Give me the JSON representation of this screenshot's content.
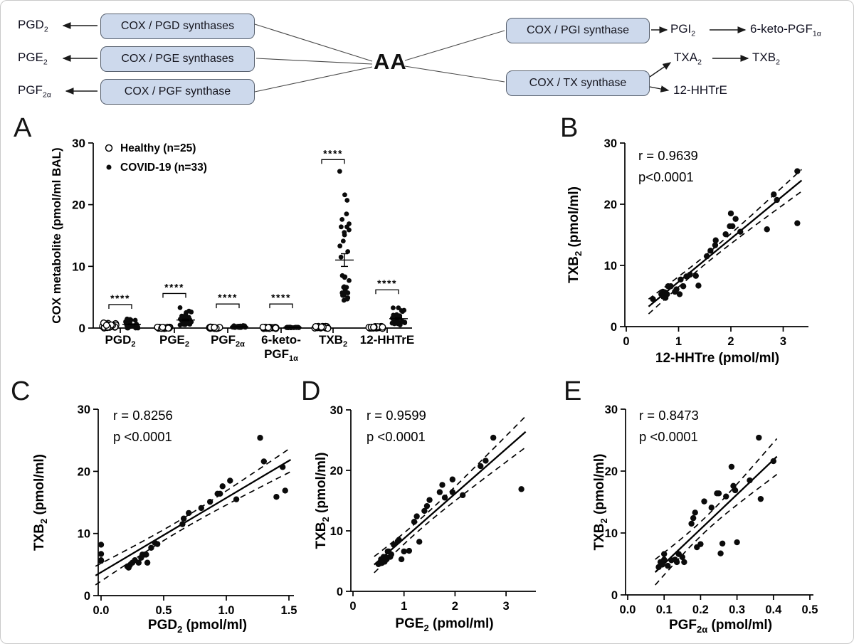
{
  "panel_letters": {
    "a": "A",
    "b": "B",
    "c": "C",
    "d": "D",
    "e": "E"
  },
  "colors": {
    "box_fill": "#cdd9ec",
    "box_border": "#57606e",
    "ink": "#000000"
  },
  "pathway": {
    "center_label": "AA",
    "left_boxes": [
      "COX / PGD synthases",
      "COX / PGE synthases",
      "COX / PGF synthase"
    ],
    "left_products": [
      {
        "base": "PGD",
        "sub": "2"
      },
      {
        "base": "PGE",
        "sub": "2"
      },
      {
        "base": "PGF",
        "sub": "2α"
      }
    ],
    "right_boxes": [
      "COX / PGI synthase",
      "COX / TX synthase"
    ],
    "right_products": [
      {
        "base": "PGI",
        "sub": "2"
      },
      {
        "base": "6-keto-PGF",
        "sub": "1α"
      },
      {
        "base": "TXA",
        "sub": "2"
      },
      {
        "base": "TXB",
        "sub": "2"
      },
      {
        "base": "12-HHTrE",
        "sub": ""
      }
    ]
  },
  "chart_data": [
    {
      "id": "A",
      "type": "scatter",
      "subtype": "grouped-dot-plot",
      "ylabel": "COX metabolite (pmol/ml BAL)",
      "ylim": [
        0,
        30
      ],
      "yticks": [
        0,
        10,
        20,
        30
      ],
      "ytick_labels": [
        "0",
        "10",
        "20",
        "30"
      ],
      "grid": false,
      "legend_position": "top-left-inside",
      "legend": [
        {
          "marker": "open-circle",
          "label": "Healthy (n=25)"
        },
        {
          "marker": "filled-circle",
          "label": "COVID-19 (n=33)"
        }
      ],
      "significance_label": "****",
      "categories": [
        {
          "label_lines": [
            {
              "base": "PGD",
              "sub": "2"
            }
          ],
          "bracket_y": 3.8,
          "healthy": [
            0.1,
            0.28,
            0.45,
            0.15,
            0.6,
            0.32,
            0.08,
            0.5,
            0.22,
            0.7,
            0.38,
            0.12,
            0.55,
            0.3,
            0.8,
            0.18,
            0.42,
            0.25,
            0.65,
            0.35,
            0.1,
            0.48,
            0.27,
            0.88,
            0.4
          ],
          "covid": [
            0.22,
            0.25,
            0.27,
            0.23,
            0.0,
            0.21,
            0.3,
            0.33,
            0.35,
            0.0,
            0.32,
            0.37,
            0.4,
            0.36,
            0.0,
            0.43,
            0.45,
            0.0,
            0.65,
            0.66,
            0.7,
            0.8,
            0.87,
            0.93,
            1.03,
            0.95,
            0.97,
            1.08,
            1.4,
            1.3,
            1.45,
            1.27,
            1.47
          ]
        },
        {
          "label_lines": [
            {
              "base": "PGE",
              "sub": "2"
            }
          ],
          "bracket_y": 5.6,
          "healthy": [
            0.02,
            0.05,
            0.08,
            0.03,
            0.07,
            0.1,
            0.04,
            0.06,
            0.02,
            0.09,
            0.05,
            0.07,
            0.03,
            0.08,
            0.04,
            0.1,
            0.05,
            0.06,
            0.09,
            0.03,
            0.07,
            0.02,
            0.06,
            0.04,
            0.08
          ],
          "covid": [
            0.5,
            0.55,
            0.6,
            0.62,
            0.65,
            0.57,
            0.66,
            0.68,
            0.7,
            0.73,
            0.75,
            0.95,
            0.8,
            1.0,
            1.3,
            0.9,
            0.88,
            1.1,
            1.2,
            1.25,
            1.4,
            1.45,
            1.5,
            1.95,
            1.95,
            1.7,
            1.75,
            1.8,
            2.15,
            2.6,
            2.5,
            2.75,
            3.3
          ]
        },
        {
          "label_lines": [
            {
              "base": "PGF",
              "sub": "2α"
            }
          ],
          "bracket_y": 3.9,
          "healthy": [
            0.02,
            0.04,
            0.06,
            0.03,
            0.05,
            0.08,
            0.04,
            0.06,
            0.02,
            0.07,
            0.05,
            0.03,
            0.06,
            0.04,
            0.08,
            0.03,
            0.05,
            0.07,
            0.02,
            0.06,
            0.04,
            0.08,
            0.05,
            0.03,
            0.07
          ],
          "covid": [
            0.085,
            0.09,
            0.1,
            0.095,
            0.12,
            0.11,
            0.135,
            0.1,
            0.14,
            0.13,
            0.15,
            0.155,
            0.19,
            0.14,
            0.2,
            0.3,
            0.26,
            0.255,
            0.175,
            0.18,
            0.185,
            0.23,
            0.21,
            0.245,
            0.335,
            0.25,
            0.29,
            0.365,
            0.27,
            0.4,
            0.285,
            0.36,
            0.295
          ]
        },
        {
          "label_lines": [
            {
              "base": "6-keto-",
              "sub": ""
            },
            {
              "base": "PGF",
              "sub": "1α"
            }
          ],
          "bracket_y": 3.9,
          "healthy": [
            0.02,
            0.05,
            0.03,
            0.06,
            0.04,
            0.07,
            0.03,
            0.05,
            0.02,
            0.06,
            0.04,
            0.08,
            0.03,
            0.05,
            0.07,
            0.02,
            0.06,
            0.04,
            0.07,
            0.03,
            0.05,
            0.08,
            0.04,
            0.06,
            0.03
          ],
          "covid": [
            0.05,
            0.08,
            0.1,
            0.06,
            0.12,
            0.07,
            0.09,
            0.11,
            0.05,
            0.13,
            0.08,
            0.1,
            0.06,
            0.14,
            0.09,
            0.12,
            0.07,
            0.11,
            0.15,
            0.08,
            0.1,
            0.13,
            0.06,
            0.09,
            0.12,
            0.07,
            0.14,
            0.1,
            0.08,
            0.11,
            0.13,
            0.09,
            0.12
          ]
        },
        {
          "label_lines": [
            {
              "base": "TXB",
              "sub": "2"
            }
          ],
          "bracket_y": 27.3,
          "healthy": [
            0.05,
            0.1,
            0.15,
            0.08,
            0.2,
            0.12,
            0.06,
            0.18,
            0.09,
            0.25,
            0.14,
            0.07,
            0.22,
            0.11,
            0.16,
            0.05,
            0.19,
            0.1,
            0.24,
            0.13,
            0.08,
            0.17,
            0.06,
            0.21,
            0.12
          ],
          "covid": [
            4.5,
            5.3,
            5.7,
            4.9,
            5.6,
            4.7,
            5.3,
            6.6,
            6.6,
            5.7,
            6.1,
            5.3,
            7.7,
            6.6,
            8.2,
            8.5,
            8.3,
            6.7,
            11.5,
            12.4,
            13.3,
            14.1,
            15.1,
            16.4,
            18.5,
            16.4,
            17.6,
            15.5,
            15.9,
            21.6,
            20.7,
            25.4,
            16.9
          ]
        },
        {
          "label_lines": [
            {
              "base": "12-HHTrE",
              "sub": ""
            }
          ],
          "bracket_y": 6.2,
          "healthy": [
            0.04,
            0.09,
            0.14,
            0.06,
            0.18,
            0.1,
            0.05,
            0.16,
            0.08,
            0.22,
            0.12,
            0.06,
            0.2,
            0.1,
            0.15,
            0.04,
            0.17,
            0.09,
            0.21,
            0.11,
            0.07,
            0.15,
            0.05,
            0.19,
            0.1
          ],
          "covid": [
            0.51,
            0.67,
            0.7,
            0.71,
            0.74,
            0.75,
            0.78,
            0.8,
            0.85,
            0.93,
            0.96,
            1.02,
            1.04,
            1.09,
            1.15,
            1.22,
            1.33,
            1.38,
            1.54,
            1.61,
            1.7,
            1.71,
            1.9,
            1.98,
            2.0,
            2.03,
            2.09,
            2.18,
            2.69,
            2.82,
            2.88,
            3.27,
            3.27
          ]
        }
      ]
    },
    {
      "id": "B",
      "type": "scatter",
      "r_label": "r = 0.9639",
      "p_label": "p<0.0001",
      "xlabel": {
        "base": "12-HHTre",
        "sub": "",
        "rest": "  (pmol/ml)"
      },
      "ylabel": {
        "base": "TXB",
        "sub": "2",
        "rest": " (pmol/ml)"
      },
      "xlim": [
        0,
        3.5
      ],
      "xticks": [
        0,
        1,
        2,
        3
      ],
      "xtick_labels": [
        "0",
        "1",
        "2",
        "3"
      ],
      "ylim": [
        0,
        30
      ],
      "yticks": [
        0,
        10,
        20,
        30
      ],
      "ytick_labels": [
        "0",
        "10",
        "20",
        "30"
      ],
      "fit": {
        "line": "solid",
        "ci": "dashed"
      },
      "points": [
        [
          0.51,
          4.5
        ],
        [
          0.67,
          5.3
        ],
        [
          0.7,
          5.7
        ],
        [
          0.71,
          4.9
        ],
        [
          0.74,
          5.6
        ],
        [
          0.75,
          4.7
        ],
        [
          0.78,
          5.3
        ],
        [
          0.8,
          6.6
        ],
        [
          0.85,
          6.6
        ],
        [
          0.93,
          5.7
        ],
        [
          0.96,
          6.1
        ],
        [
          1.02,
          5.3
        ],
        [
          1.04,
          7.7
        ],
        [
          1.09,
          6.6
        ],
        [
          1.15,
          8.2
        ],
        [
          1.22,
          8.5
        ],
        [
          1.33,
          8.3
        ],
        [
          1.38,
          6.7
        ],
        [
          1.54,
          11.5
        ],
        [
          1.61,
          12.4
        ],
        [
          1.7,
          13.3
        ],
        [
          1.71,
          14.1
        ],
        [
          1.9,
          15.1
        ],
        [
          1.98,
          16.4
        ],
        [
          2.0,
          18.5
        ],
        [
          2.03,
          16.4
        ],
        [
          2.09,
          17.6
        ],
        [
          2.18,
          15.5
        ],
        [
          2.69,
          15.9
        ],
        [
          2.82,
          21.6
        ],
        [
          2.88,
          20.7
        ],
        [
          3.27,
          25.4
        ],
        [
          3.27,
          16.9
        ]
      ]
    },
    {
      "id": "C",
      "type": "scatter",
      "r_label": "r =  0.8256",
      "p_label": "p <0.0001",
      "xlabel": {
        "base": "PGD",
        "sub": "2",
        "rest": "  (pmol/ml)"
      },
      "ylabel": {
        "base": "TXB",
        "sub": "2",
        "rest": " (pmol/ml)"
      },
      "xlim": [
        0,
        1.5
      ],
      "xticks": [
        0,
        0.5,
        1.0,
        1.5
      ],
      "xtick_labels": [
        "0.0",
        "0.5",
        "1.0",
        "1.5"
      ],
      "ylim": [
        0,
        30
      ],
      "yticks": [
        0,
        10,
        20,
        30
      ],
      "ytick_labels": [
        "0",
        "10",
        "20",
        "30"
      ],
      "fit": {
        "line": "solid",
        "ci": "dashed"
      },
      "points": [
        [
          0.22,
          4.5
        ],
        [
          0.25,
          5.3
        ],
        [
          0.27,
          5.7
        ],
        [
          0.23,
          4.9
        ],
        [
          0.0,
          5.6
        ],
        [
          0.21,
          4.7
        ],
        [
          0.3,
          5.3
        ],
        [
          0.33,
          6.6
        ],
        [
          0.35,
          6.6
        ],
        [
          0.0,
          5.7
        ],
        [
          0.32,
          6.1
        ],
        [
          0.37,
          5.3
        ],
        [
          0.4,
          7.7
        ],
        [
          0.36,
          6.6
        ],
        [
          0.0,
          8.2
        ],
        [
          0.43,
          8.5
        ],
        [
          0.45,
          8.3
        ],
        [
          0.0,
          6.7
        ],
        [
          0.65,
          11.5
        ],
        [
          0.66,
          12.4
        ],
        [
          0.7,
          13.3
        ],
        [
          0.8,
          14.1
        ],
        [
          0.87,
          15.1
        ],
        [
          0.93,
          16.4
        ],
        [
          1.03,
          18.5
        ],
        [
          0.95,
          16.4
        ],
        [
          0.97,
          17.6
        ],
        [
          1.08,
          15.5
        ],
        [
          1.4,
          15.9
        ],
        [
          1.3,
          21.6
        ],
        [
          1.45,
          20.7
        ],
        [
          1.27,
          25.4
        ],
        [
          1.47,
          16.9
        ]
      ]
    },
    {
      "id": "D",
      "type": "scatter",
      "r_label": "r = 0.9599",
      "p_label": "p <0.0001",
      "xlabel": {
        "base": "PGE",
        "sub": "2",
        "rest": "  (pmol/ml)"
      },
      "ylabel": {
        "base": "TXB",
        "sub": "2",
        "rest": " (pmol/ml)"
      },
      "xlim": [
        0,
        3.5
      ],
      "xticks": [
        0,
        1,
        2,
        3
      ],
      "xtick_labels": [
        "0",
        "1",
        "2",
        "3"
      ],
      "ylim": [
        0,
        30
      ],
      "yticks": [
        0,
        10,
        20,
        30
      ],
      "ytick_labels": [
        "0",
        "10",
        "20",
        "30"
      ],
      "fit": {
        "line": "solid",
        "ci": "dashed"
      },
      "points": [
        [
          0.5,
          4.5
        ],
        [
          0.55,
          5.3
        ],
        [
          0.6,
          5.7
        ],
        [
          0.62,
          4.9
        ],
        [
          0.65,
          5.6
        ],
        [
          0.57,
          4.7
        ],
        [
          0.66,
          5.3
        ],
        [
          0.68,
          6.6
        ],
        [
          0.7,
          6.6
        ],
        [
          0.73,
          5.7
        ],
        [
          0.75,
          6.1
        ],
        [
          0.95,
          5.3
        ],
        [
          0.8,
          7.7
        ],
        [
          1.0,
          6.6
        ],
        [
          1.3,
          8.2
        ],
        [
          0.9,
          8.5
        ],
        [
          0.88,
          8.3
        ],
        [
          1.1,
          6.7
        ],
        [
          1.2,
          11.5
        ],
        [
          1.25,
          12.4
        ],
        [
          1.4,
          13.3
        ],
        [
          1.45,
          14.1
        ],
        [
          1.5,
          15.1
        ],
        [
          1.95,
          16.4
        ],
        [
          1.95,
          18.5
        ],
        [
          1.7,
          16.4
        ],
        [
          1.75,
          17.6
        ],
        [
          1.8,
          15.5
        ],
        [
          2.15,
          15.9
        ],
        [
          2.6,
          21.6
        ],
        [
          2.5,
          20.7
        ],
        [
          2.75,
          25.4
        ],
        [
          3.3,
          16.9
        ]
      ]
    },
    {
      "id": "E",
      "type": "scatter",
      "r_label": "r = 0.8473",
      "p_label": "p <0.0001",
      "xlabel": {
        "base": "PGF",
        "sub": "2α",
        "rest": "  (pmol/ml)"
      },
      "ylabel": {
        "base": "TXB",
        "sub": "2",
        "rest": " (pmol/ml)"
      },
      "xlim": [
        0,
        0.5
      ],
      "xticks": [
        0,
        0.1,
        0.2,
        0.3,
        0.4,
        0.5
      ],
      "xtick_labels": [
        "0.0",
        "0.1",
        "0.2",
        "0.3",
        "0.4",
        "0.5"
      ],
      "ylim": [
        0,
        30
      ],
      "yticks": [
        0,
        10,
        20,
        30
      ],
      "ytick_labels": [
        "0",
        "10",
        "20",
        "30"
      ],
      "fit": {
        "line": "solid",
        "ci": "dashed"
      },
      "points": [
        [
          0.085,
          4.5
        ],
        [
          0.09,
          5.3
        ],
        [
          0.1,
          5.7
        ],
        [
          0.095,
          4.9
        ],
        [
          0.12,
          5.6
        ],
        [
          0.11,
          4.7
        ],
        [
          0.135,
          5.3
        ],
        [
          0.1,
          6.6
        ],
        [
          0.14,
          6.6
        ],
        [
          0.13,
          5.7
        ],
        [
          0.15,
          6.1
        ],
        [
          0.155,
          5.3
        ],
        [
          0.19,
          7.7
        ],
        [
          0.14,
          6.6
        ],
        [
          0.2,
          8.2
        ],
        [
          0.3,
          8.5
        ],
        [
          0.26,
          8.3
        ],
        [
          0.255,
          6.7
        ],
        [
          0.175,
          11.5
        ],
        [
          0.18,
          12.4
        ],
        [
          0.185,
          13.3
        ],
        [
          0.23,
          14.1
        ],
        [
          0.21,
          15.1
        ],
        [
          0.245,
          16.4
        ],
        [
          0.335,
          18.5
        ],
        [
          0.25,
          16.4
        ],
        [
          0.29,
          17.6
        ],
        [
          0.365,
          15.5
        ],
        [
          0.27,
          15.9
        ],
        [
          0.4,
          21.6
        ],
        [
          0.285,
          20.7
        ],
        [
          0.36,
          25.4
        ],
        [
          0.295,
          16.9
        ]
      ]
    }
  ]
}
